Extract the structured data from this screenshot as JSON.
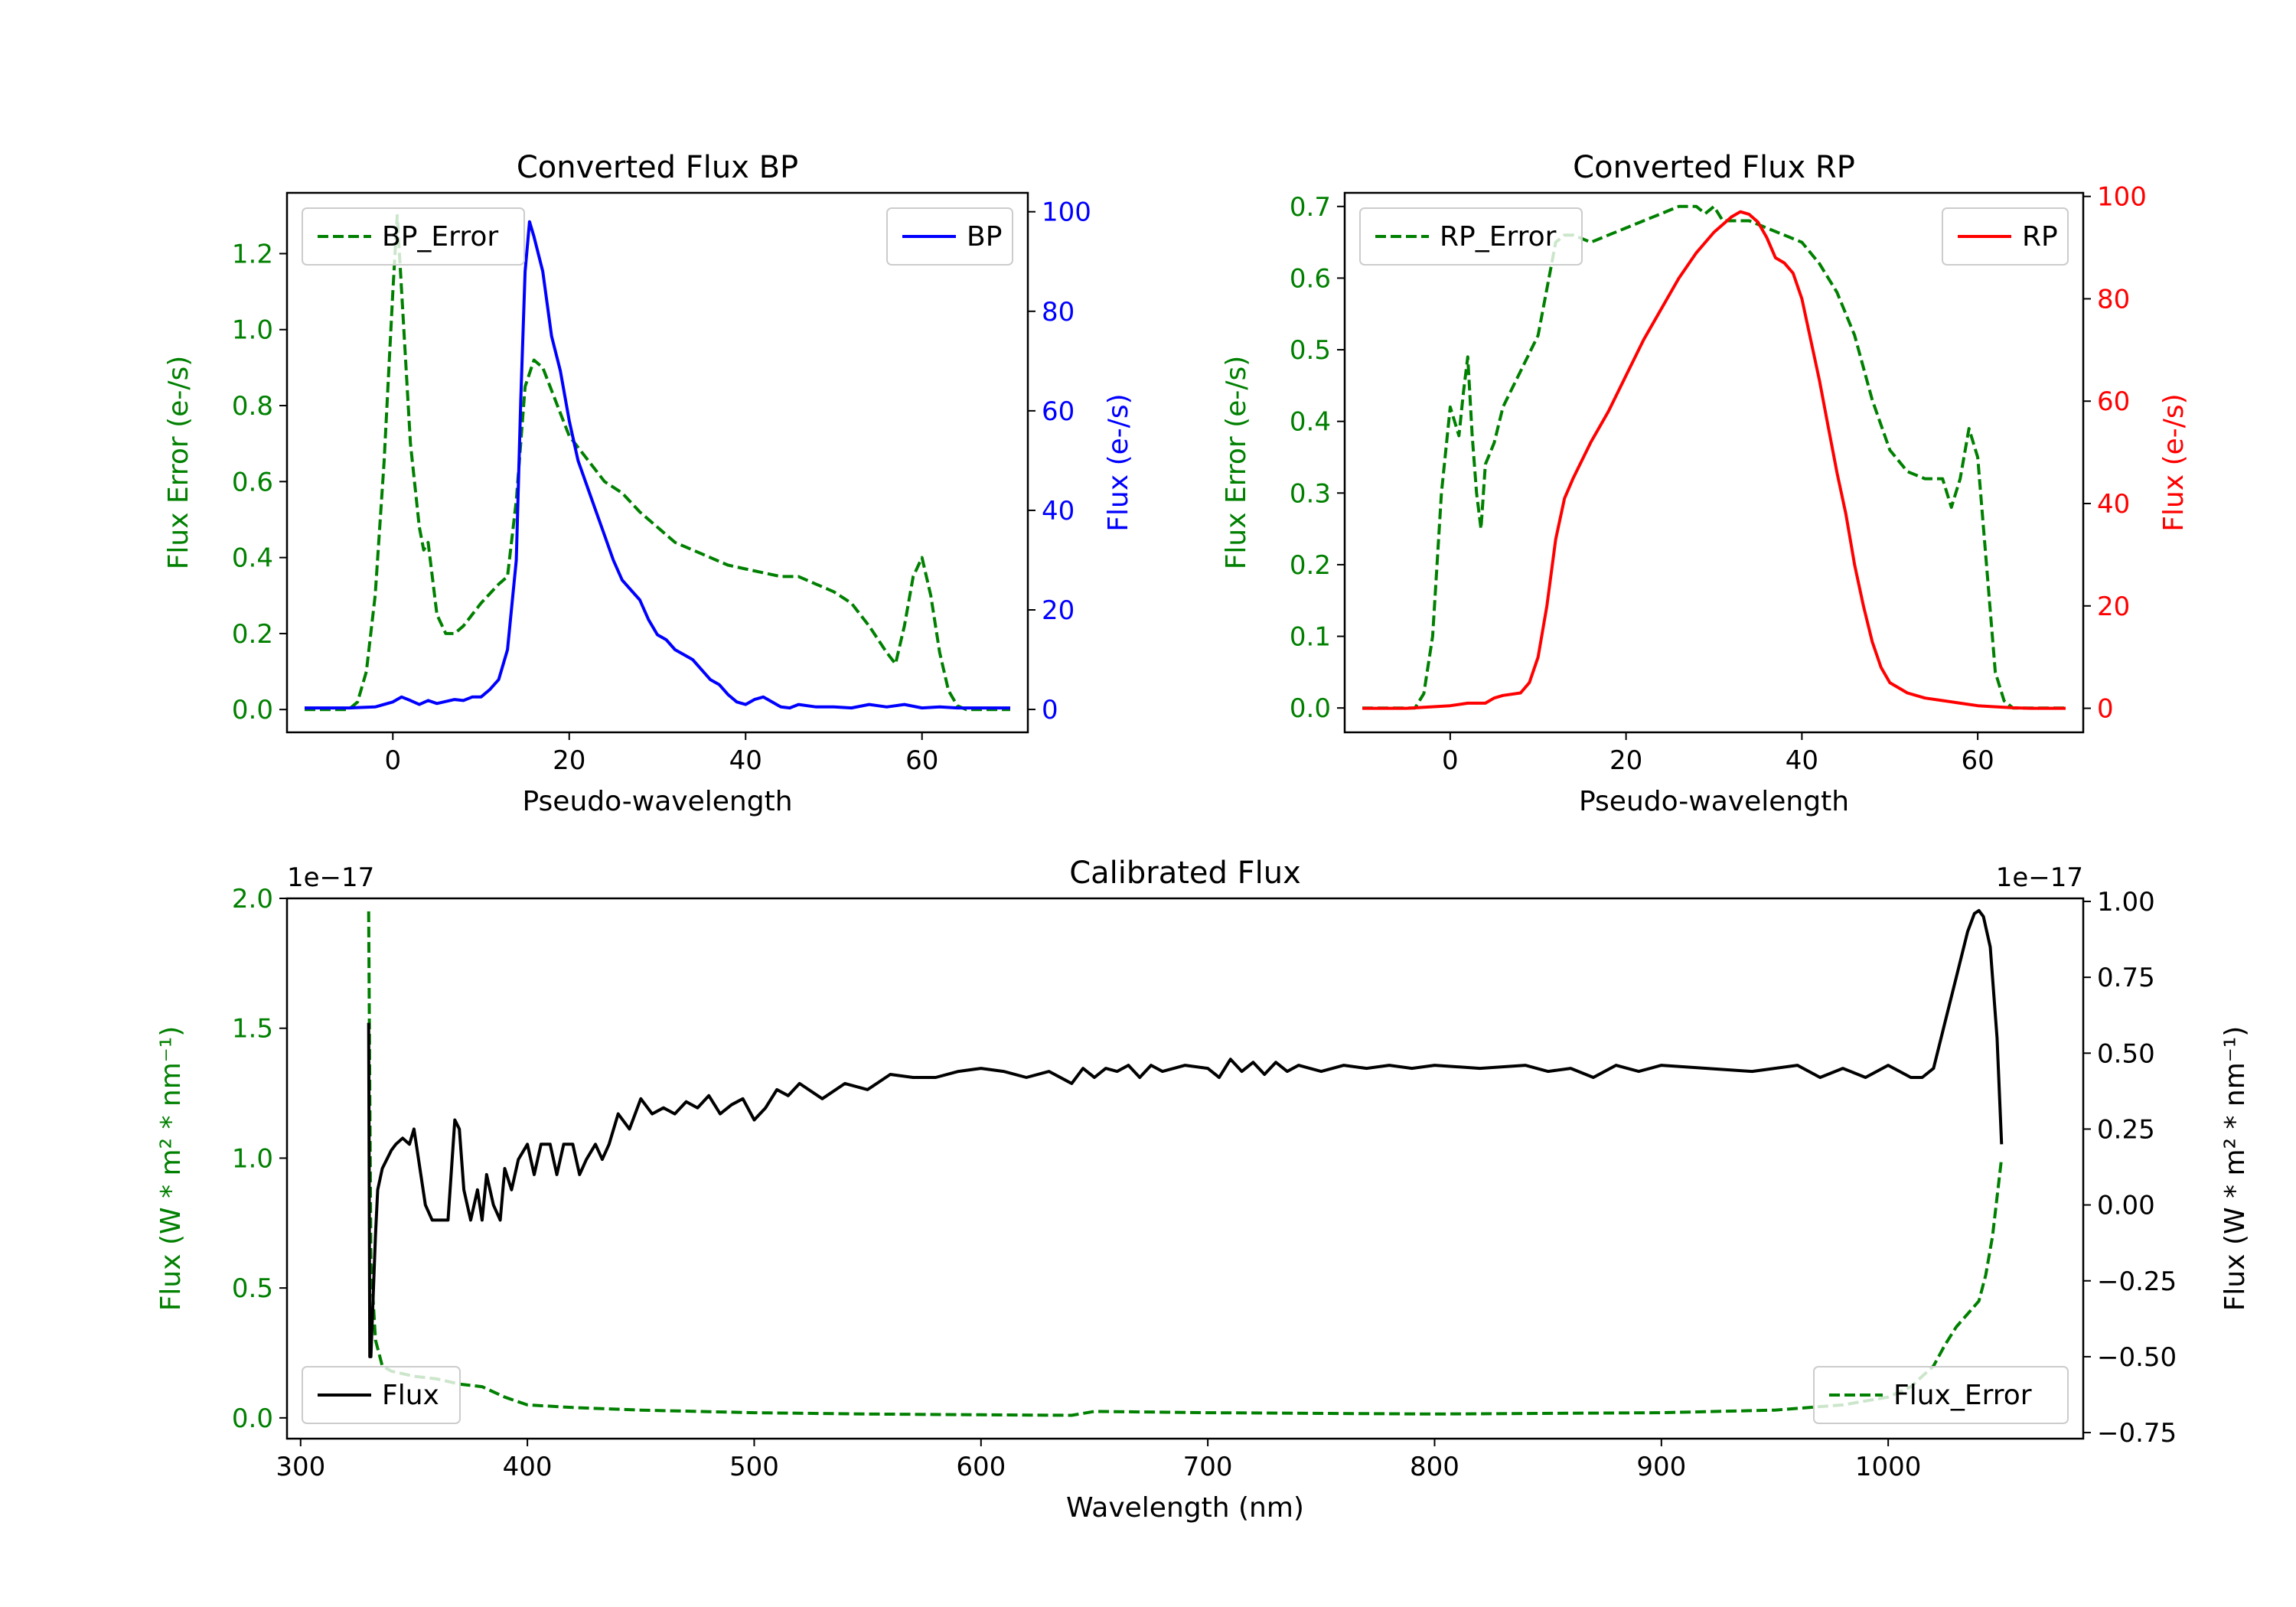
{
  "colors": {
    "error": "#008000",
    "bp": "#0000ff",
    "rp": "#ff0000",
    "flux": "#000000",
    "axis": "#000000"
  },
  "chart_data": [
    {
      "id": "bp",
      "type": "line",
      "title": "Converted Flux BP",
      "xlabel": "Pseudo-wavelength",
      "ylabel_left": "Flux Error (e-/s)",
      "ylabel_right": "Flux (e-/s)",
      "xlim": [
        -12,
        72
      ],
      "ylim_left": [
        -0.06,
        1.36
      ],
      "ylim_right": [
        -4.6,
        103.8
      ],
      "xticks": [
        0,
        20,
        40,
        60
      ],
      "xtick_labels": [
        "0",
        "20",
        "40",
        "60"
      ],
      "yticks_left": [
        0.0,
        0.2,
        0.4,
        0.6,
        0.8,
        1.0,
        1.2
      ],
      "ytick_labels_left": [
        "0.0",
        "0.2",
        "0.4",
        "0.6",
        "0.8",
        "1.0",
        "1.2"
      ],
      "yticks_right": [
        0,
        20,
        40,
        60,
        80,
        100
      ],
      "ytick_labels_right": [
        "0",
        "20",
        "40",
        "60",
        "80",
        "100"
      ],
      "legend_left": "BP_Error",
      "legend_right": "BP",
      "series": [
        {
          "name": "BP_Error",
          "axis": "left",
          "color_key": "error",
          "dash": true,
          "x": [
            -10,
            -5,
            -4,
            -3,
            -2,
            -1,
            0,
            0.5,
            1,
            2,
            3,
            3.5,
            4,
            5,
            6,
            7,
            8,
            10,
            12,
            13,
            14,
            15,
            16,
            17,
            18,
            19,
            20,
            22,
            24,
            26,
            28,
            30,
            32,
            34,
            36,
            38,
            40,
            42,
            44,
            46,
            48,
            50,
            52,
            54,
            56,
            57,
            58,
            59,
            60,
            61,
            62,
            63,
            64,
            65,
            66,
            68,
            70
          ],
          "y": [
            0.0,
            0.0,
            0.02,
            0.1,
            0.3,
            0.65,
            1.1,
            1.3,
            1.1,
            0.7,
            0.48,
            0.42,
            0.44,
            0.25,
            0.2,
            0.2,
            0.22,
            0.28,
            0.33,
            0.35,
            0.55,
            0.85,
            0.92,
            0.9,
            0.84,
            0.78,
            0.72,
            0.66,
            0.6,
            0.57,
            0.52,
            0.48,
            0.44,
            0.42,
            0.4,
            0.38,
            0.37,
            0.36,
            0.35,
            0.35,
            0.33,
            0.31,
            0.28,
            0.22,
            0.15,
            0.12,
            0.22,
            0.35,
            0.4,
            0.3,
            0.15,
            0.05,
            0.01,
            0.0,
            0.0,
            0.0,
            0.0
          ]
        },
        {
          "name": "BP",
          "axis": "right",
          "color_key": "bp",
          "dash": false,
          "x": [
            -10,
            -5,
            -2,
            0,
            1,
            2,
            3,
            4,
            5,
            6,
            7,
            8,
            9,
            10,
            11,
            12,
            13,
            14,
            14.5,
            15,
            15.5,
            16,
            17,
            18,
            19,
            20,
            21,
            22,
            23,
            24,
            25,
            26,
            27,
            28,
            29,
            30,
            31,
            32,
            33,
            34,
            35,
            36,
            37,
            38,
            39,
            40,
            41,
            42,
            43,
            44,
            45,
            46,
            48,
            50,
            52,
            54,
            56,
            58,
            60,
            62,
            64,
            66,
            68,
            70
          ],
          "y": [
            0.3,
            0.3,
            0.5,
            1.5,
            2.5,
            1.8,
            1.0,
            1.8,
            1.2,
            1.6,
            2.0,
            1.8,
            2.5,
            2.5,
            4.0,
            6.0,
            12,
            30,
            62,
            88,
            98,
            95,
            88,
            75,
            68,
            58,
            50,
            45,
            40,
            35,
            30,
            26,
            24,
            22,
            18,
            15,
            14,
            12,
            11,
            10,
            8,
            6,
            5,
            3,
            1.5,
            1.0,
            2.0,
            2.5,
            1.5,
            0.5,
            0.3,
            1.0,
            0.5,
            0.5,
            0.3,
            1.0,
            0.5,
            1.0,
            0.3,
            0.5,
            0.3,
            0.3,
            0.3,
            0.3
          ]
        }
      ]
    },
    {
      "id": "rp",
      "type": "line",
      "title": "Converted Flux RP",
      "xlabel": "Pseudo-wavelength",
      "ylabel_left": "Flux Error (e-/s)",
      "ylabel_right": "Flux (e-/s)",
      "xlim": [
        -12,
        72
      ],
      "ylim_left": [
        -0.034,
        0.719
      ],
      "ylim_right": [
        -4.7,
        100.7
      ],
      "xticks": [
        0,
        20,
        40,
        60
      ],
      "xtick_labels": [
        "0",
        "20",
        "40",
        "60"
      ],
      "yticks_left": [
        0.0,
        0.1,
        0.2,
        0.3,
        0.4,
        0.5,
        0.6,
        0.7
      ],
      "ytick_labels_left": [
        "0.0",
        "0.1",
        "0.2",
        "0.3",
        "0.4",
        "0.5",
        "0.6",
        "0.7"
      ],
      "yticks_right": [
        0,
        20,
        40,
        60,
        80,
        100
      ],
      "ytick_labels_right": [
        "0",
        "20",
        "40",
        "60",
        "80",
        "100"
      ],
      "legend_left": "RP_Error",
      "legend_right": "RP",
      "series": [
        {
          "name": "RP_Error",
          "axis": "left",
          "color_key": "error",
          "dash": true,
          "x": [
            -10,
            -5,
            -4,
            -3,
            -2,
            -1,
            0,
            0.5,
            1,
            1.5,
            2,
            2.5,
            3,
            3.5,
            4,
            5,
            6,
            8,
            10,
            12,
            13,
            14,
            16,
            18,
            20,
            22,
            24,
            26,
            28,
            29,
            30,
            31,
            32,
            34,
            36,
            38,
            40,
            42,
            44,
            46,
            48,
            50,
            52,
            54,
            56,
            57,
            58,
            59,
            60,
            61,
            62,
            63,
            64,
            65,
            66,
            68,
            70
          ],
          "y": [
            0.0,
            0.0,
            0.0,
            0.02,
            0.1,
            0.3,
            0.42,
            0.4,
            0.38,
            0.44,
            0.49,
            0.38,
            0.3,
            0.25,
            0.34,
            0.37,
            0.42,
            0.47,
            0.52,
            0.65,
            0.66,
            0.66,
            0.65,
            0.66,
            0.67,
            0.68,
            0.69,
            0.7,
            0.7,
            0.69,
            0.7,
            0.68,
            0.68,
            0.68,
            0.67,
            0.66,
            0.65,
            0.62,
            0.58,
            0.52,
            0.43,
            0.36,
            0.33,
            0.32,
            0.32,
            0.28,
            0.32,
            0.39,
            0.35,
            0.2,
            0.05,
            0.01,
            0.0,
            0.0,
            0.0,
            0.0,
            0.0
          ]
        },
        {
          "name": "RP",
          "axis": "right",
          "color_key": "rp",
          "dash": false,
          "x": [
            -10,
            -5,
            0,
            2,
            4,
            5,
            6,
            8,
            9,
            10,
            11,
            12,
            13,
            14,
            16,
            18,
            20,
            22,
            24,
            26,
            28,
            30,
            32,
            33,
            34,
            35,
            36,
            37,
            38,
            39,
            40,
            41,
            42,
            43,
            44,
            45,
            46,
            47,
            48,
            49,
            50,
            52,
            54,
            56,
            58,
            60,
            62,
            64,
            66,
            68,
            70
          ],
          "y": [
            0.0,
            0.0,
            0.5,
            1.0,
            1.0,
            2.0,
            2.5,
            3.0,
            5.0,
            10,
            20,
            33,
            41,
            45,
            52,
            58,
            65,
            72,
            78,
            84,
            89,
            93,
            96,
            97,
            96.5,
            95,
            92,
            88,
            87,
            85,
            80,
            72,
            64,
            55,
            46,
            38,
            28,
            20,
            13,
            8,
            5,
            3,
            2,
            1.5,
            1.0,
            0.5,
            0.3,
            0.1,
            0.0,
            0.0,
            0.0
          ]
        }
      ]
    },
    {
      "id": "calibrated",
      "type": "line",
      "title": "Calibrated Flux",
      "xlabel": "Wavelength (nm)",
      "ylabel_left": "Flux (W * m² * nm⁻¹)",
      "ylabel_right": "Flux (W * m² * nm⁻¹)",
      "offset_left": "1e−17",
      "offset_right": "1e−17",
      "xlim": [
        294,
        1086
      ],
      "ylim_left": [
        -0.08,
        2.0
      ],
      "ylim_right": [
        -0.77,
        1.01
      ],
      "xticks": [
        300,
        400,
        500,
        600,
        700,
        800,
        900,
        1000
      ],
      "xtick_labels": [
        "300",
        "400",
        "500",
        "600",
        "700",
        "800",
        "900",
        "1000"
      ],
      "yticks_left": [
        0.0,
        0.5,
        1.0,
        1.5,
        2.0
      ],
      "ytick_labels_left": [
        "0.0",
        "0.5",
        "1.0",
        "1.5",
        "2.0"
      ],
      "yticks_right": [
        -0.75,
        -0.5,
        -0.25,
        0.0,
        0.25,
        0.5,
        0.75,
        1.0
      ],
      "ytick_labels_right": [
        "−0.75",
        "−0.50",
        "−0.25",
        "0.00",
        "0.25",
        "0.50",
        "0.75",
        "1.00"
      ],
      "legend_left": "Flux",
      "legend_right": "Flux_Error",
      "series": [
        {
          "name": "Flux_Error",
          "axis": "left",
          "color_key": "error",
          "dash": true,
          "x": [
            330,
            331,
            333,
            336,
            340,
            350,
            360,
            370,
            380,
            390,
            400,
            420,
            450,
            500,
            550,
            600,
            640,
            650,
            700,
            800,
            900,
            950,
            980,
            1000,
            1010,
            1015,
            1020,
            1025,
            1030,
            1035,
            1040,
            1043,
            1046,
            1048,
            1050
          ],
          "y": [
            1.95,
            0.6,
            0.3,
            0.2,
            0.18,
            0.16,
            0.15,
            0.13,
            0.12,
            0.08,
            0.05,
            0.04,
            0.03,
            0.02,
            0.015,
            0.012,
            0.01,
            0.025,
            0.02,
            0.015,
            0.02,
            0.03,
            0.05,
            0.08,
            0.12,
            0.16,
            0.2,
            0.28,
            0.35,
            0.4,
            0.45,
            0.55,
            0.7,
            0.85,
            1.0
          ]
        },
        {
          "name": "Flux",
          "axis": "right",
          "color_key": "flux",
          "dash": false,
          "x": [
            330,
            330.5,
            331,
            332,
            333,
            334,
            336,
            338,
            340,
            342,
            345,
            348,
            350,
            352,
            355,
            358,
            360,
            362,
            365,
            368,
            370,
            372,
            375,
            378,
            380,
            382,
            385,
            388,
            390,
            393,
            396,
            400,
            403,
            406,
            410,
            413,
            416,
            420,
            423,
            426,
            430,
            433,
            436,
            440,
            445,
            450,
            455,
            460,
            465,
            470,
            475,
            480,
            485,
            490,
            495,
            500,
            505,
            510,
            515,
            520,
            530,
            540,
            550,
            560,
            570,
            580,
            590,
            600,
            610,
            620,
            630,
            640,
            645,
            650,
            655,
            660,
            665,
            670,
            675,
            680,
            690,
            700,
            705,
            710,
            715,
            720,
            725,
            730,
            735,
            740,
            750,
            760,
            770,
            780,
            790,
            800,
            820,
            840,
            850,
            860,
            870,
            880,
            890,
            900,
            920,
            940,
            960,
            970,
            980,
            990,
            1000,
            1010,
            1015,
            1020,
            1025,
            1030,
            1035,
            1038,
            1040,
            1042,
            1045,
            1048,
            1050
          ],
          "y": [
            0.6,
            -0.5,
            -0.5,
            -0.3,
            -0.1,
            0.05,
            0.12,
            0.15,
            0.18,
            0.2,
            0.22,
            0.2,
            0.25,
            0.15,
            0.0,
            -0.05,
            -0.05,
            -0.05,
            -0.05,
            0.28,
            0.25,
            0.05,
            -0.05,
            0.05,
            -0.05,
            0.1,
            0.0,
            -0.05,
            0.12,
            0.05,
            0.15,
            0.2,
            0.1,
            0.2,
            0.2,
            0.1,
            0.2,
            0.2,
            0.1,
            0.15,
            0.2,
            0.15,
            0.2,
            0.3,
            0.25,
            0.35,
            0.3,
            0.32,
            0.3,
            0.34,
            0.32,
            0.36,
            0.3,
            0.33,
            0.35,
            0.28,
            0.32,
            0.38,
            0.36,
            0.4,
            0.35,
            0.4,
            0.38,
            0.43,
            0.42,
            0.42,
            0.44,
            0.45,
            0.44,
            0.42,
            0.44,
            0.4,
            0.45,
            0.42,
            0.45,
            0.44,
            0.46,
            0.42,
            0.46,
            0.44,
            0.46,
            0.45,
            0.42,
            0.48,
            0.44,
            0.47,
            0.43,
            0.47,
            0.44,
            0.46,
            0.44,
            0.46,
            0.45,
            0.46,
            0.45,
            0.46,
            0.45,
            0.46,
            0.44,
            0.45,
            0.42,
            0.46,
            0.44,
            0.46,
            0.45,
            0.44,
            0.46,
            0.42,
            0.45,
            0.42,
            0.46,
            0.42,
            0.42,
            0.45,
            0.6,
            0.75,
            0.9,
            0.96,
            0.97,
            0.95,
            0.85,
            0.55,
            0.2
          ]
        }
      ]
    }
  ]
}
